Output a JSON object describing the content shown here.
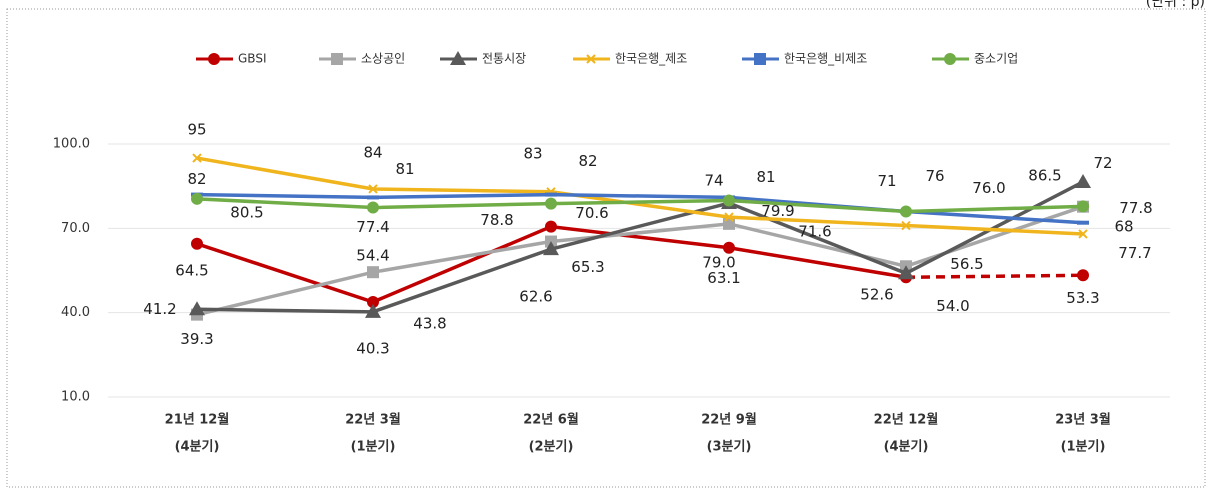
{
  "chart_data": {
    "type": "line",
    "unit": "(단위 : p)",
    "categories": [
      [
        "21년 12월",
        "(4분기)"
      ],
      [
        "22년 3월",
        "(1분기)"
      ],
      [
        "22년 6월",
        "(2분기)"
      ],
      [
        "22년 9월",
        "(3분기)"
      ],
      [
        "22년 12월",
        "(4분기)"
      ],
      [
        "23년 3월",
        "(1분기)"
      ]
    ],
    "ylim": [
      10,
      100
    ],
    "yticks": [
      {
        "value": 10,
        "label": "10.0"
      },
      {
        "value": 40,
        "label": "40.0"
      },
      {
        "value": 70,
        "label": "70.0"
      },
      {
        "value": 100,
        "label": "100.0"
      }
    ],
    "grid": true,
    "legend": "top",
    "series": [
      {
        "name": "GBSI",
        "color": "#c00000",
        "marker": "circle",
        "dashed_last_segment": true,
        "values": [
          64.5,
          43.8,
          70.6,
          63.1,
          52.6,
          53.3
        ],
        "value_labels": [
          "64.5",
          "43.8",
          "70.6",
          "63.1",
          "52.6",
          "53.3"
        ]
      },
      {
        "name": "소상공인",
        "color": "#a6a6a6",
        "marker": "square",
        "values": [
          39.3,
          54.4,
          65.3,
          71.6,
          56.5,
          77.7
        ],
        "value_labels": [
          "39.3",
          "54.4",
          "65.3",
          "71.6",
          "56.5",
          "77.7"
        ]
      },
      {
        "name": "전통시장",
        "color": "#595959",
        "marker": "triangle",
        "values": [
          41.2,
          40.3,
          62.6,
          79.0,
          54.0,
          86.5
        ],
        "value_labels": [
          "41.2",
          "40.3",
          "62.6",
          "79.0",
          "54.0",
          "86.5"
        ]
      },
      {
        "name": "한국은행_제조",
        "color": "#f0b41c",
        "marker": "x",
        "values": [
          95,
          84,
          83,
          74,
          71,
          68
        ],
        "value_labels": [
          "95",
          "84",
          "83",
          "74",
          "71",
          "68"
        ]
      },
      {
        "name": "한국은행_비제조",
        "color": "#4472c4",
        "marker": "dash",
        "values": [
          82,
          81,
          82,
          81,
          76,
          72
        ],
        "value_labels": [
          "82",
          "81",
          "82",
          "81",
          "76",
          "72"
        ]
      },
      {
        "name": "중소기업",
        "color": "#70ad47",
        "marker": "circle",
        "values": [
          80.5,
          77.4,
          78.8,
          79.9,
          76.0,
          77.8
        ],
        "value_labels": [
          "80.5",
          "77.4",
          "78.8",
          "79.9",
          "76.0",
          "77.8"
        ]
      }
    ]
  }
}
